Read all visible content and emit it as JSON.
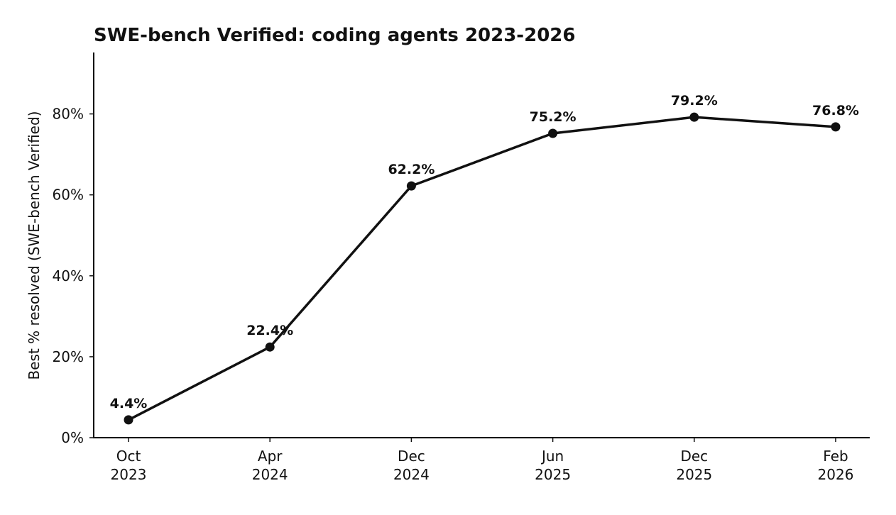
{
  "chart_data": {
    "type": "line",
    "title": "SWE-bench Verified: coding agents 2023-2026",
    "xlabel": "",
    "ylabel": "Best % resolved (SWE-bench Verified)",
    "categories": [
      "Oct\n2023",
      "Apr\n2024",
      "Dec\n2024",
      "Jun\n2025",
      "Dec\n2025",
      "Feb\n2026"
    ],
    "series": [
      {
        "values": [
          4.4,
          22.4,
          62.2,
          75.2,
          79.2,
          76.8
        ],
        "labels": [
          "4.4%",
          "22.4%",
          "62.2%",
          "75.2%",
          "79.2%",
          "76.8%"
        ]
      }
    ],
    "ylim": [
      0,
      95
    ],
    "yticks": [
      0,
      20,
      40,
      60,
      80
    ],
    "ytick_labels": [
      "0%",
      "20%",
      "40%",
      "60%",
      "80%"
    ],
    "grid": false,
    "legend": "none",
    "colors": {
      "line": "#111111",
      "axis": "#111111",
      "text": "#111111"
    }
  }
}
